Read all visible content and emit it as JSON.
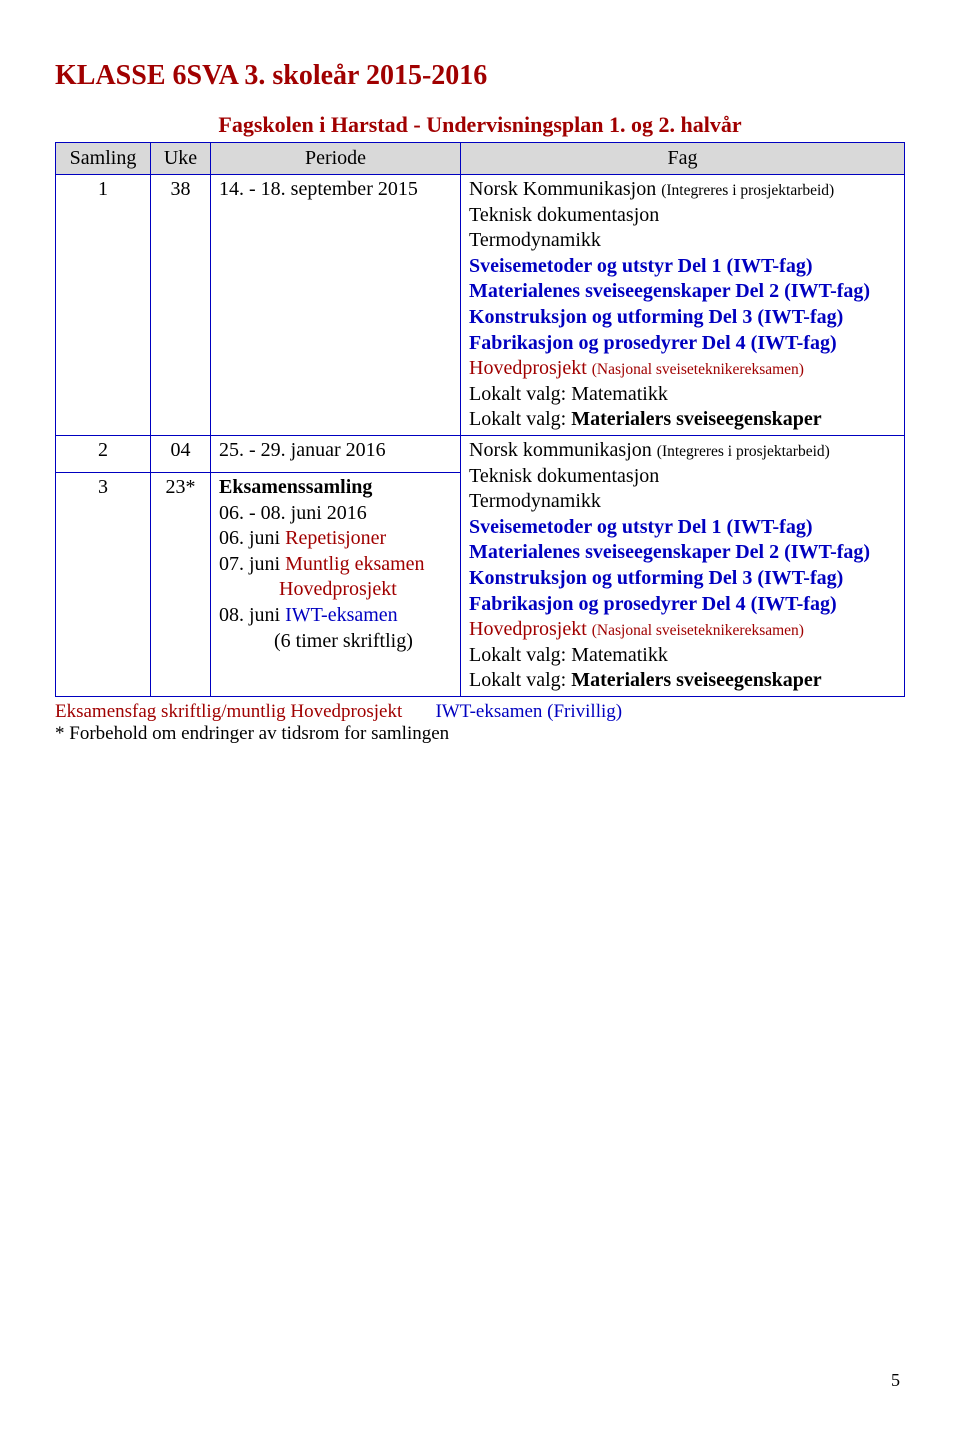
{
  "title": "KLASSE 6SVA 3. skoleår 2015-2016",
  "subtitle": "Fagskolen i Harstad - Undervisningsplan 1. og 2. halvår",
  "columns": {
    "c1": "Samling",
    "c2": "Uke",
    "c3": "Periode",
    "c4": "Fag"
  },
  "rows": [
    {
      "samling": "1",
      "uke": "38",
      "periode": [
        {
          "text": "14. - 18. september 2015",
          "color": "black"
        }
      ],
      "fag": [
        {
          "text": "Norsk Kommunikasjon ",
          "color": "black"
        },
        {
          "text": "(Integreres i prosjektarbeid)",
          "color": "black",
          "small": true,
          "break": true
        },
        {
          "text": "Teknisk dokumentasjon",
          "color": "black",
          "break": true
        },
        {
          "text": "Termodynamikk",
          "color": "black",
          "break": true
        },
        {
          "text": "Sveisemetoder og utstyr Del 1 (IWT-fag)",
          "color": "blue",
          "bold": true,
          "break": true
        },
        {
          "text": "Materialenes sveiseegenskaper Del 2 (IWT-fag)",
          "color": "blue",
          "bold": true,
          "break": true
        },
        {
          "text": "Konstruksjon og utforming Del 3 (IWT-fag)",
          "color": "blue",
          "bold": true,
          "break": true
        },
        {
          "text": "Fabrikasjon og prosedyrer Del 4 (IWT-fag)",
          "color": "blue",
          "bold": true,
          "break": true
        },
        {
          "text": "Hovedprosjekt ",
          "color": "red"
        },
        {
          "text": "(Nasjonal sveiseteknikereksamen)",
          "color": "red",
          "small": true,
          "break": true
        },
        {
          "text": "Lokalt valg: Matematikk",
          "color": "black",
          "break": true
        },
        {
          "text": "Lokalt valg: ",
          "color": "black"
        },
        {
          "text": "Materialers sveiseegenskaper",
          "color": "black",
          "bold": true
        }
      ]
    },
    {
      "samling": "2",
      "uke": "04",
      "periode": [
        {
          "text": "25. - 29. januar 2016",
          "color": "black"
        }
      ],
      "fag_merged_below": true
    },
    {
      "samling": "3",
      "uke": "23*",
      "periode": [
        {
          "text": "Eksamenssamling",
          "color": "black",
          "bold": true,
          "break": true
        },
        {
          "text": " 06. - 08. juni 2016",
          "color": "black",
          "break": true
        },
        {
          "text": "06. juni ",
          "color": "black"
        },
        {
          "text": "Repetisjoner",
          "color": "red",
          "break": true
        },
        {
          "text": "07. juni ",
          "color": "black"
        },
        {
          "text": "Muntlig eksamen",
          "color": "red",
          "break": true
        },
        {
          "text": "            Hovedprosjekt",
          "color": "red",
          "pre": true,
          "break": true
        },
        {
          "text": "08. juni ",
          "color": "black"
        },
        {
          "text": "IWT-eksamen",
          "color": "blue",
          "break": true
        },
        {
          "text": "           ",
          "pre": true,
          "color": "black"
        },
        {
          "text": "(6 timer skriftlig)",
          "color": "black"
        }
      ],
      "fag": [
        {
          "text": "Norsk kommunikasjon ",
          "color": "black"
        },
        {
          "text": "(Integreres i prosjektarbeid)",
          "color": "black",
          "small": true,
          "break": true
        },
        {
          "text": "Teknisk dokumentasjon",
          "color": "black",
          "break": true
        },
        {
          "text": "Termodynamikk",
          "color": "black",
          "break": true
        },
        {
          "text": "Sveisemetoder og utstyr Del 1 (IWT-fag)",
          "color": "blue",
          "bold": true,
          "break": true
        },
        {
          "text": "Materialenes sveiseegenskaper Del 2 (IWT-fag)",
          "color": "blue",
          "bold": true,
          "break": true
        },
        {
          "text": "Konstruksjon og utforming Del 3 (IWT-fag)",
          "color": "blue",
          "bold": true,
          "break": true
        },
        {
          "text": "Fabrikasjon og prosedyrer Del 4 (IWT-fag)",
          "color": "blue",
          "bold": true,
          "break": true
        },
        {
          "text": "Hovedprosjekt ",
          "color": "red"
        },
        {
          "text": "(Nasjonal sveiseteknikereksamen)",
          "color": "red",
          "small": true,
          "break": true
        },
        {
          "text": "Lokalt valg: Matematikk",
          "color": "black",
          "break": true
        },
        {
          "text": "Lokalt valg: ",
          "color": "black"
        },
        {
          "text": "Materialers sveiseegenskaper",
          "color": "black",
          "bold": true
        }
      ]
    }
  ],
  "footer": {
    "line1_left": "Eksamensfag skriftlig/muntlig Hovedprosjekt",
    "line1_right": "IWT-eksamen (Frivillig)",
    "line2": "* Forbehold om endringer av tidsrom for samlingen"
  },
  "page_number": "5"
}
